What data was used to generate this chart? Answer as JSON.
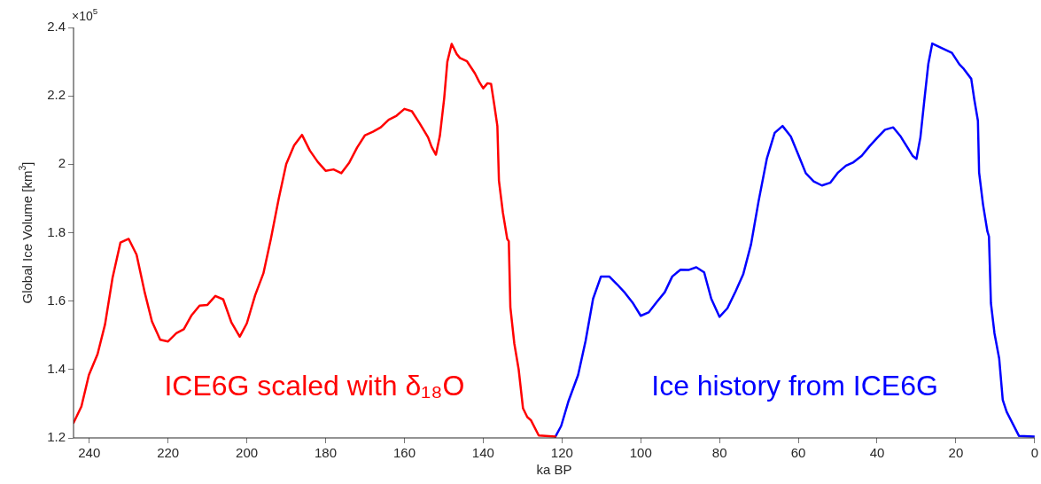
{
  "chart_data": {
    "type": "line",
    "xlabel": "ka BP",
    "ylabel": "Global Ice Volume [km$^{3}$]",
    "annotations": [
      "×10$^{5}$"
    ],
    "xlim": [
      244,
      0
    ],
    "xticks": [
      240,
      220,
      200,
      180,
      160,
      140,
      120,
      100,
      80,
      60,
      40,
      20,
      0
    ],
    "ylim": [
      1.2,
      2.4
    ],
    "yticks": [
      1.2,
      1.4,
      1.6,
      1.8,
      2,
      2.2,
      2.4
    ],
    "grid": false,
    "legend": false,
    "marker": "none",
    "line_style": "solid",
    "series": [
      {
        "name": "ICE6G scaled with δ₁₈O",
        "color": "#ff0000",
        "x": [
          244,
          242,
          240.1,
          237.9,
          236,
          234.1,
          232.1,
          230,
          228,
          225.9,
          224.1,
          222,
          220,
          217.9,
          216,
          214,
          212,
          210,
          208,
          206,
          203.9,
          201.8,
          200,
          197.9,
          195.8,
          193.9,
          191.9,
          190,
          188,
          186,
          184,
          182,
          180,
          178,
          176,
          174,
          172,
          170,
          168,
          166,
          164,
          162,
          160,
          158.1,
          156.1,
          154,
          153.1,
          152,
          151,
          149.9,
          149.1,
          148,
          146.7,
          145.9,
          144.1,
          142.1,
          141,
          140,
          138.9,
          138,
          137.2,
          136.4,
          136,
          135,
          133.9,
          133.5,
          133.1,
          132.1,
          131,
          129.9,
          128.8,
          127.9,
          125.9,
          121.7
        ],
        "values": [
          1.244,
          1.292,
          1.384,
          1.445,
          1.532,
          1.668,
          1.771,
          1.782,
          1.736,
          1.624,
          1.541,
          1.487,
          1.482,
          1.506,
          1.518,
          1.559,
          1.587,
          1.589,
          1.615,
          1.605,
          1.537,
          1.496,
          1.535,
          1.617,
          1.681,
          1.782,
          1.9,
          2.001,
          2.055,
          2.086,
          2.04,
          2.007,
          1.981,
          1.985,
          1.974,
          2.005,
          2.049,
          2.085,
          2.095,
          2.108,
          2.13,
          2.142,
          2.162,
          2.155,
          2.119,
          2.079,
          2.051,
          2.028,
          2.083,
          2.193,
          2.3,
          2.352,
          2.322,
          2.311,
          2.301,
          2.266,
          2.241,
          2.222,
          2.237,
          2.235,
          2.175,
          2.112,
          1.952,
          1.859,
          1.782,
          1.775,
          1.582,
          1.476,
          1.401,
          1.287,
          1.261,
          1.252,
          1.207,
          1.204
        ]
      },
      {
        "name": "Ice history from ICE6G",
        "color": "#0000ff",
        "x": [
          121.7,
          120.2,
          118.3,
          115.9,
          114,
          112.1,
          110.1,
          108,
          106,
          104,
          102.1,
          100,
          98,
          95.9,
          93.9,
          92,
          89.9,
          87.9,
          85.9,
          83.9,
          82.1,
          80,
          78,
          75.9,
          74,
          72,
          70.1,
          68,
          66,
          64,
          61.9,
          60,
          58.1,
          56.1,
          54,
          51.9,
          49.9,
          47.9,
          46,
          43.9,
          41.9,
          40,
          38,
          35.9,
          34,
          32,
          31,
          30,
          29,
          28,
          27,
          26,
          24,
          21,
          19.1,
          18,
          16.1,
          15.3,
          14.4,
          14.1,
          13.1,
          12,
          11.6,
          11.1,
          10.2,
          9,
          8.1,
          7.1,
          4,
          0.1
        ],
        "values": [
          1.203,
          1.235,
          1.309,
          1.384,
          1.484,
          1.607,
          1.672,
          1.672,
          1.649,
          1.624,
          1.596,
          1.557,
          1.567,
          1.598,
          1.626,
          1.672,
          1.692,
          1.691,
          1.699,
          1.684,
          1.607,
          1.554,
          1.579,
          1.629,
          1.678,
          1.766,
          1.891,
          2.016,
          2.092,
          2.112,
          2.081,
          2.028,
          1.974,
          1.95,
          1.938,
          1.946,
          1.976,
          1.996,
          2.006,
          2.025,
          2.053,
          2.077,
          2.101,
          2.108,
          2.081,
          2.044,
          2.025,
          2.016,
          2.079,
          2.188,
          2.293,
          2.353,
          2.342,
          2.326,
          2.292,
          2.279,
          2.25,
          2.188,
          2.127,
          1.976,
          1.882,
          1.804,
          1.789,
          1.594,
          1.506,
          1.432,
          1.311,
          1.276,
          1.206,
          1.204
        ]
      }
    ]
  }
}
